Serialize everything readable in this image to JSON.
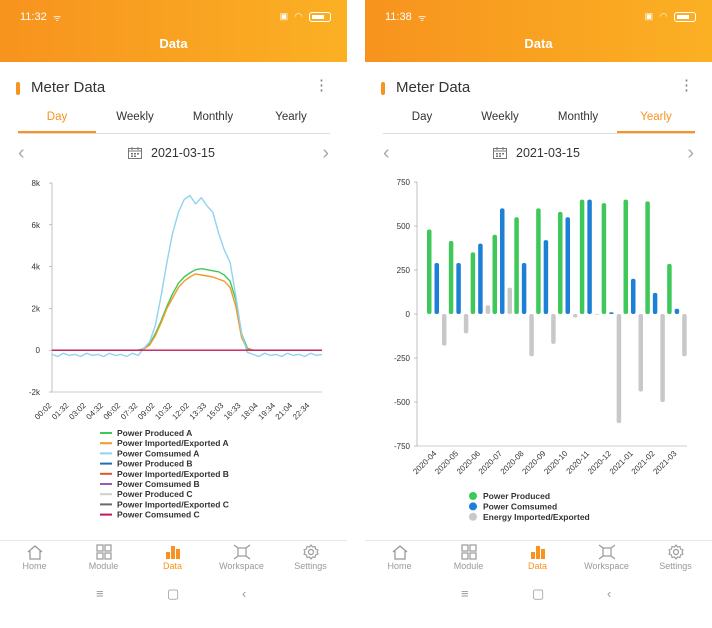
{
  "left": {
    "status": {
      "time": "11:32"
    },
    "header": {
      "title": "Data"
    },
    "card": {
      "title": "Meter Data"
    },
    "tabs": [
      {
        "label": "Day",
        "active": true
      },
      {
        "label": "Weekly",
        "active": false
      },
      {
        "label": "Monthly",
        "active": false
      },
      {
        "label": "Yearly",
        "active": false
      }
    ],
    "date": "2021-03-15",
    "nav": [
      {
        "label": "Home",
        "icon": "home-icon"
      },
      {
        "label": "Module",
        "icon": "grid-icon"
      },
      {
        "label": "Data",
        "icon": "bar-chart-icon",
        "active": true
      },
      {
        "label": "Workspace",
        "icon": "workspace-icon"
      },
      {
        "label": "Settings",
        "icon": "gear-icon"
      }
    ]
  },
  "right": {
    "status": {
      "time": "11:38"
    },
    "header": {
      "title": "Data"
    },
    "card": {
      "title": "Meter Data"
    },
    "tabs": [
      {
        "label": "Day",
        "active": false
      },
      {
        "label": "Weekly",
        "active": false
      },
      {
        "label": "Monthly",
        "active": false
      },
      {
        "label": "Yearly",
        "active": true
      }
    ],
    "date": "2021-03-15",
    "nav": [
      {
        "label": "Home",
        "icon": "home-icon"
      },
      {
        "label": "Module",
        "icon": "grid-icon"
      },
      {
        "label": "Data",
        "icon": "bar-chart-icon",
        "active": true
      },
      {
        "label": "Workspace",
        "icon": "workspace-icon"
      },
      {
        "label": "Settings",
        "icon": "gear-icon"
      }
    ]
  },
  "colors": {
    "accent": "#f7931e",
    "produced": "#3ec85a",
    "consumed": "#1e7fd6",
    "imported": "#c8c8c8"
  },
  "chart_data": [
    {
      "type": "line",
      "title": "",
      "ylim": [
        -2000,
        8000
      ],
      "yticks": [
        -2000,
        0,
        2000,
        4000,
        6000,
        8000
      ],
      "ytick_labels": [
        "-2k",
        "0",
        "2k",
        "4k",
        "6k",
        "8k"
      ],
      "x_labels": [
        "00:02",
        "01:32",
        "03:02",
        "04:32",
        "06:02",
        "07:32",
        "09:02",
        "10:32",
        "12:02",
        "13:33",
        "15:03",
        "16:33",
        "18:04",
        "19:34",
        "21:04",
        "22:34"
      ],
      "series": [
        {
          "name": "Power Produced A",
          "color": "#3ec85a",
          "values": [
            0,
            0,
            0,
            0,
            0,
            0,
            0,
            0,
            0,
            0,
            0,
            0,
            0,
            0,
            0,
            0,
            80,
            300,
            800,
            1400,
            2100,
            2700,
            3200,
            3500,
            3700,
            3850,
            3900,
            3850,
            3800,
            3750,
            3600,
            3300,
            2400,
            800,
            100,
            0,
            0,
            0,
            0,
            0,
            0,
            0,
            0,
            0,
            0,
            0,
            0,
            0
          ]
        },
        {
          "name": "Power Imported/Exported A",
          "color": "#f39a2a",
          "values": [
            0,
            0,
            0,
            0,
            0,
            0,
            0,
            0,
            0,
            0,
            0,
            0,
            0,
            0,
            0,
            0,
            60,
            250,
            700,
            1300,
            2000,
            2500,
            3000,
            3300,
            3500,
            3650,
            3600,
            3550,
            3500,
            3400,
            3300,
            3000,
            2100,
            600,
            50,
            0,
            0,
            0,
            0,
            0,
            0,
            0,
            0,
            0,
            0,
            0,
            0,
            0
          ]
        },
        {
          "name": "Power Comsumed A",
          "color": "#8fd3f2",
          "values": [
            -200,
            -300,
            -150,
            -250,
            -200,
            -300,
            -150,
            -250,
            -200,
            -300,
            -150,
            -250,
            -200,
            -300,
            -150,
            -250,
            100,
            400,
            1200,
            2600,
            4200,
            5600,
            6600,
            7200,
            7400,
            7000,
            7300,
            6900,
            6600,
            5600,
            4800,
            4200,
            2600,
            800,
            -100,
            -200,
            -300,
            -150,
            -250,
            -200,
            -300,
            -150,
            -250,
            -200,
            -300,
            -150,
            -250,
            -200
          ]
        },
        {
          "name": "Power Produced B",
          "color": "#1e6fb5",
          "values": []
        },
        {
          "name": "Power Imported/Exported B",
          "color": "#d95a2b",
          "values": []
        },
        {
          "name": "Power Comsumed B",
          "color": "#9b59b6",
          "values": []
        },
        {
          "name": "Power Produced C",
          "color": "#cfcfcf",
          "values": []
        },
        {
          "name": "Power Imported/Exported C",
          "color": "#6b6b6b",
          "values": []
        },
        {
          "name": "Power Comsumed C",
          "color": "#c2185b",
          "values": [
            0,
            0,
            0,
            0,
            0,
            0,
            0,
            0,
            0,
            0,
            0,
            0,
            0,
            0,
            0,
            0,
            0,
            0,
            0,
            0,
            0,
            0,
            0,
            0,
            0,
            0,
            0,
            0,
            0,
            0,
            0,
            0,
            0,
            0,
            0,
            0,
            0,
            0,
            0,
            0,
            0,
            0,
            0,
            0,
            0,
            0,
            0,
            0
          ]
        }
      ]
    },
    {
      "type": "bar",
      "title": "",
      "ylim": [
        -750,
        750
      ],
      "yticks": [
        -750,
        -500,
        -250,
        0,
        250,
        500,
        750
      ],
      "ytick_labels": [
        "-750",
        "-500",
        "-250",
        "0",
        "250",
        "500",
        "750"
      ],
      "categories": [
        "2020-04",
        "2020-05",
        "2020-06",
        "2020-07",
        "2020-08",
        "2020-09",
        "2020-10",
        "2020-11",
        "2020-12",
        "2021-01",
        "2021-02",
        "2021-03"
      ],
      "series": [
        {
          "name": "Power Produced",
          "color": "#3ec85a",
          "values": [
            480,
            415,
            350,
            450,
            550,
            600,
            580,
            650,
            630,
            650,
            640,
            285
          ]
        },
        {
          "name": "Power Comsumed",
          "color": "#1e7fd6",
          "values": [
            290,
            290,
            400,
            600,
            290,
            420,
            550,
            650,
            10,
            200,
            120,
            30
          ]
        },
        {
          "name": "Energy Imported/Exported",
          "color": "#c8c8c8",
          "values": [
            -180,
            -110,
            50,
            150,
            -240,
            -170,
            -20,
            0,
            -620,
            -440,
            -500,
            -240
          ]
        }
      ]
    }
  ]
}
